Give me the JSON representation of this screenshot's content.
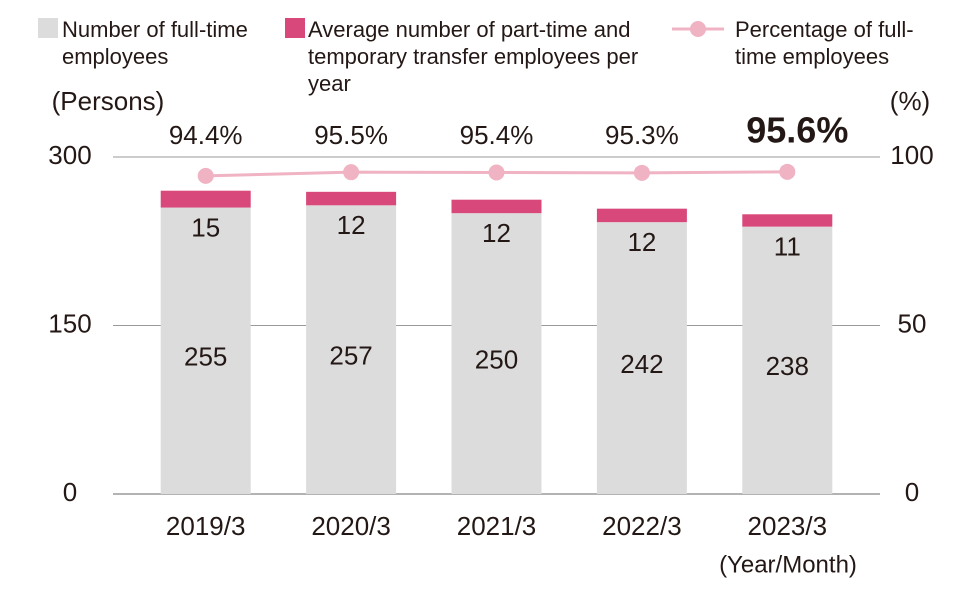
{
  "chart_data": {
    "type": "bar",
    "stacked": true,
    "categories": [
      "2019/3",
      "2020/3",
      "2021/3",
      "2022/3",
      "2023/3"
    ],
    "series": [
      {
        "name": "Number of full-time employees",
        "color": "#dcdcdc",
        "values": [
          255,
          257,
          250,
          242,
          238
        ]
      },
      {
        "name": "Average number of part-time and temporary transfer employees per year",
        "color": "#d9487a",
        "values": [
          15,
          12,
          12,
          12,
          11
        ]
      },
      {
        "name": "Percentage of full-time employees",
        "type": "line",
        "axis": "y2",
        "color": "#f0b3c3",
        "values": [
          94.4,
          95.5,
          95.4,
          95.3,
          95.6
        ],
        "value_labels": [
          "94.4%",
          "95.5%",
          "95.4%",
          "95.3%",
          "95.6%"
        ]
      }
    ],
    "ylim": [
      0,
      300
    ],
    "yticks": [
      0,
      150,
      300
    ],
    "y2lim": [
      0,
      100
    ],
    "y2ticks": [
      0,
      50,
      100
    ],
    "ylabel": "(Persons)",
    "y2label": "(%)",
    "xlabel": "(Year/Month)",
    "grid": true
  }
}
